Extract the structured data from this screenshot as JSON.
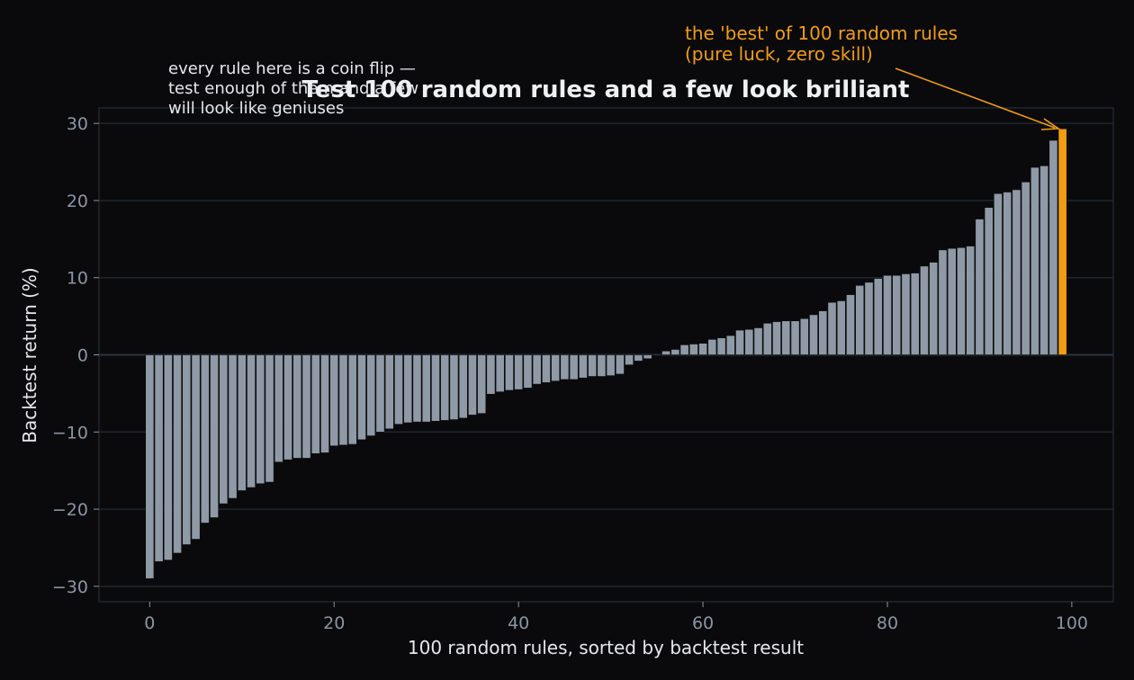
{
  "chart_data": {
    "type": "bar",
    "title": "Test 100 random rules and a few look brilliant",
    "xlabel": "100 random rules, sorted by backtest result",
    "ylabel": "Backtest return (%)",
    "xlim": [
      -5.5,
      104.5
    ],
    "ylim": [
      -32,
      32
    ],
    "x_ticks": [
      0,
      20,
      40,
      60,
      80,
      100
    ],
    "y_ticks": [
      -30,
      -20,
      -10,
      0,
      10,
      20,
      30
    ],
    "grid": true,
    "colors": {
      "bar": "#8f9aa6",
      "highlight": "#f39c12",
      "background": "#0a0a0d",
      "grid": "#1e262e"
    },
    "values": [
      -29.0,
      -26.8,
      -26.6,
      -25.7,
      -24.6,
      -23.9,
      -21.8,
      -21.1,
      -19.3,
      -18.6,
      -17.6,
      -17.2,
      -16.7,
      -16.5,
      -13.9,
      -13.6,
      -13.4,
      -13.4,
      -12.8,
      -12.7,
      -11.8,
      -11.7,
      -11.6,
      -11.0,
      -10.5,
      -10.0,
      -9.6,
      -9.0,
      -8.8,
      -8.7,
      -8.7,
      -8.6,
      -8.5,
      -8.4,
      -8.2,
      -7.8,
      -7.6,
      -5.1,
      -4.8,
      -4.6,
      -4.5,
      -4.3,
      -3.8,
      -3.6,
      -3.4,
      -3.2,
      -3.2,
      -3.0,
      -2.8,
      -2.8,
      -2.7,
      -2.5,
      -1.3,
      -0.8,
      -0.5,
      -0.1,
      0.5,
      0.7,
      1.3,
      1.4,
      1.5,
      2.0,
      2.2,
      2.5,
      3.2,
      3.3,
      3.5,
      4.1,
      4.3,
      4.4,
      4.4,
      4.7,
      5.2,
      5.7,
      6.8,
      7.0,
      7.8,
      9.0,
      9.4,
      9.9,
      10.3,
      10.3,
      10.5,
      10.6,
      11.5,
      12.0,
      13.6,
      13.8,
      13.9,
      14.1,
      17.6,
      19.1,
      20.9,
      21.1,
      21.4,
      22.4,
      24.3,
      24.5,
      27.8,
      29.3
    ],
    "highlight_index": 99,
    "annotations": {
      "note": [
        "every rule here is a coin flip —",
        "test enough of them and a few",
        "will look like geniuses"
      ],
      "best": [
        "the 'best' of 100 random rules",
        "(pure luck, zero skill)"
      ]
    }
  }
}
